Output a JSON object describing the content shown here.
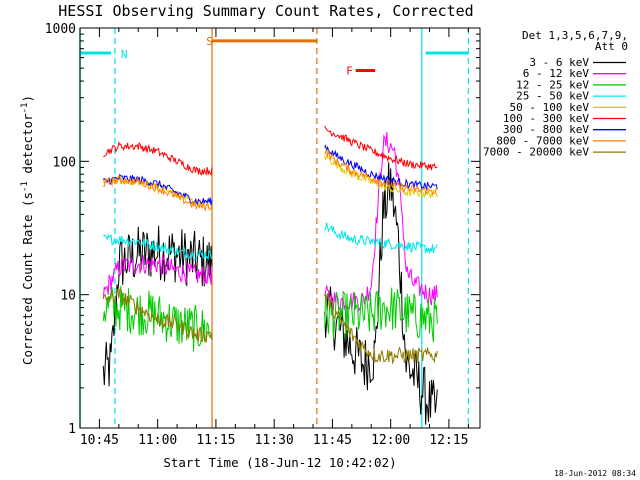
{
  "chart_data": {
    "type": "line",
    "title": "HESSI Observing Summary Count Rates, Corrected",
    "xlabel": "Start Time (18-Jun-12 10:42:02)",
    "ylabel_main": "Corrected Count Rate (s",
    "ylabel_sup1": "-1",
    "ylabel_mid": " detector",
    "ylabel_sup2": "-1",
    "ylabel_end": ")",
    "ylog": true,
    "ylim": [
      1,
      1000
    ],
    "xlim": [
      "10:40",
      "12:23"
    ],
    "x_ticks": [
      "10:45",
      "11:00",
      "11:15",
      "11:30",
      "11:45",
      "12:00",
      "12:15"
    ],
    "y_ticks": [
      "1",
      "10",
      "100",
      "1000"
    ],
    "legend_header": [
      "Det 1,3,5,6,7,9,",
      "Att 0"
    ],
    "legend_position": "right",
    "timestamp": "18-Jun-2012 08:34",
    "flag_labels": {
      "night": "N",
      "saa": "S",
      "flare": "F"
    },
    "series": [
      {
        "name": "3 - 6 keV",
        "color": "#000000",
        "noise": 0.22,
        "points": {
          "p1": [
            [
              "10:46",
              2.5
            ],
            [
              "10:48",
              3
            ],
            [
              "10:50",
              17
            ],
            [
              "10:55",
              20
            ],
            [
              "11:00",
              21
            ],
            [
              "11:05",
              20
            ],
            [
              "11:10",
              18
            ],
            [
              "11:14",
              17
            ]
          ],
          "p2": [
            [
              "11:43",
              8
            ],
            [
              "11:46",
              6
            ],
            [
              "11:50",
              4
            ],
            [
              "11:53",
              3
            ],
            [
              "11:56",
              3.5
            ],
            [
              "11:58",
              40
            ],
            [
              "12:00",
              70
            ],
            [
              "12:02",
              25
            ],
            [
              "12:04",
              3
            ],
            [
              "12:06",
              2.5
            ],
            [
              "12:10",
              1.5
            ],
            [
              "12:12",
              1.3
            ]
          ]
        }
      },
      {
        "name": "6 - 12 keV",
        "color": "#ff00ff",
        "noise": 0.08,
        "points": {
          "p1": [
            [
              "10:46",
              10
            ],
            [
              "10:50",
              16
            ],
            [
              "10:55",
              17
            ],
            [
              "11:00",
              17
            ],
            [
              "11:05",
              15
            ],
            [
              "11:10",
              14
            ],
            [
              "11:14",
              14
            ]
          ],
          "p2": [
            [
              "11:43",
              10
            ],
            [
              "11:46",
              9
            ],
            [
              "11:50",
              9
            ],
            [
              "11:53",
              9
            ],
            [
              "11:55",
              12
            ],
            [
              "11:57",
              60
            ],
            [
              "11:58",
              130
            ],
            [
              "11:59",
              140
            ],
            [
              "12:01",
              120
            ],
            [
              "12:03",
              40
            ],
            [
              "12:04",
              15
            ],
            [
              "12:06",
              12
            ],
            [
              "12:10",
              10
            ],
            [
              "12:12",
              10
            ]
          ]
        }
      },
      {
        "name": "12 - 25 keV",
        "color": "#00cc00",
        "noise": 0.18,
        "points": {
          "p1": [
            [
              "10:46",
              8
            ],
            [
              "10:50",
              8
            ],
            [
              "10:55",
              7.5
            ],
            [
              "11:00",
              7
            ],
            [
              "11:05",
              6
            ],
            [
              "11:10",
              5.5
            ],
            [
              "11:14",
              5.5
            ]
          ],
          "p2": [
            [
              "11:43",
              7
            ],
            [
              "11:46",
              7
            ],
            [
              "11:50",
              7
            ],
            [
              "11:55",
              7
            ],
            [
              "11:58",
              8
            ],
            [
              "12:00",
              8
            ],
            [
              "12:05",
              7
            ],
            [
              "12:10",
              6.5
            ],
            [
              "12:12",
              6.5
            ]
          ]
        }
      },
      {
        "name": "25 - 50 keV",
        "color": "#00e6e6",
        "noise": 0.04,
        "points": {
          "p1": [
            [
              "10:46",
              26
            ],
            [
              "10:50",
              26
            ],
            [
              "10:55",
              25
            ],
            [
              "11:00",
              23
            ],
            [
              "11:05",
              21
            ],
            [
              "11:10",
              20
            ],
            [
              "11:14",
              20
            ]
          ],
          "p2": [
            [
              "11:43",
              33
            ],
            [
              "11:46",
              29
            ],
            [
              "11:50",
              26
            ],
            [
              "11:55",
              25
            ],
            [
              "12:00",
              24
            ],
            [
              "12:05",
              23
            ],
            [
              "12:10",
              22
            ],
            [
              "12:12",
              22
            ]
          ]
        }
      },
      {
        "name": "50 - 100 keV",
        "color": "#e6c800",
        "noise": 0.03,
        "points": {
          "p1": [
            [
              "10:46",
              70
            ],
            [
              "10:50",
              72
            ],
            [
              "10:55",
              70
            ],
            [
              "11:00",
              65
            ],
            [
              "11:05",
              56
            ],
            [
              "11:10",
              49
            ],
            [
              "11:14",
              48
            ]
          ],
          "p2": [
            [
              "11:43",
              110
            ],
            [
              "11:46",
              95
            ],
            [
              "11:50",
              80
            ],
            [
              "11:55",
              70
            ],
            [
              "12:00",
              62
            ],
            [
              "12:05",
              58
            ],
            [
              "12:10",
              57
            ],
            [
              "12:12",
              57
            ]
          ]
        }
      },
      {
        "name": "100 - 300 keV",
        "color": "#ff0000",
        "noise": 0.03,
        "points": {
          "p1": [
            [
              "10:46",
              115
            ],
            [
              "10:50",
              130
            ],
            [
              "10:55",
              130
            ],
            [
              "11:00",
              118
            ],
            [
              "11:05",
              100
            ],
            [
              "11:10",
              85
            ],
            [
              "11:14",
              85
            ]
          ],
          "p2": [
            [
              "11:43",
              175
            ],
            [
              "11:46",
              160
            ],
            [
              "11:50",
              140
            ],
            [
              "11:55",
              120
            ],
            [
              "12:00",
              105
            ],
            [
              "12:05",
              95
            ],
            [
              "12:10",
              92
            ],
            [
              "12:12",
              90
            ]
          ]
        }
      },
      {
        "name": "300 - 800 keV",
        "color": "#0000ff",
        "noise": 0.03,
        "points": {
          "p1": [
            [
              "10:46",
              70
            ],
            [
              "10:50",
              75
            ],
            [
              "10:55",
              73
            ],
            [
              "11:00",
              68
            ],
            [
              "11:05",
              58
            ],
            [
              "11:10",
              50
            ],
            [
              "11:14",
              50
            ]
          ],
          "p2": [
            [
              "11:43",
              130
            ],
            [
              "11:46",
              110
            ],
            [
              "11:50",
              95
            ],
            [
              "11:55",
              80
            ],
            [
              "12:00",
              72
            ],
            [
              "12:05",
              67
            ],
            [
              "12:10",
              65
            ],
            [
              "12:12",
              65
            ]
          ]
        }
      },
      {
        "name": "800 - 7000 keV",
        "color": "#ff8000",
        "noise": 0.03,
        "points": {
          "p1": [
            [
              "10:46",
              68
            ],
            [
              "10:50",
              73
            ],
            [
              "10:55",
              70
            ],
            [
              "11:00",
              63
            ],
            [
              "11:05",
              54
            ],
            [
              "11:10",
              46
            ],
            [
              "11:14",
              46
            ]
          ],
          "p2": [
            [
              "11:43",
              120
            ],
            [
              "11:46",
              100
            ],
            [
              "11:50",
              85
            ],
            [
              "11:55",
              75
            ],
            [
              "12:00",
              67
            ],
            [
              "12:05",
              62
            ],
            [
              "12:10",
              60
            ],
            [
              "12:12",
              60
            ]
          ]
        }
      },
      {
        "name": "7000 - 20000 keV",
        "color": "#8b7a00",
        "noise": 0.06,
        "points": {
          "p1": [
            [
              "10:46",
              9
            ],
            [
              "10:50",
              10
            ],
            [
              "10:55",
              8
            ],
            [
              "11:00",
              6.5
            ],
            [
              "11:05",
              6
            ],
            [
              "11:10",
              5
            ],
            [
              "11:14",
              5
            ]
          ],
          "p2": [
            [
              "11:43",
              10
            ],
            [
              "11:46",
              7
            ],
            [
              "11:50",
              5
            ],
            [
              "11:53",
              4
            ],
            [
              "11:56",
              3.5
            ],
            [
              "12:00",
              3.5
            ],
            [
              "12:05",
              3.5
            ],
            [
              "12:10",
              3.5
            ],
            [
              "12:12",
              3.5
            ]
          ]
        }
      }
    ],
    "flags": {
      "night_color": "#00e6e6",
      "saa_color": "#e07000",
      "flare_color": "#ff0000",
      "night_bars": [
        [
          "10:40",
          "10:48"
        ],
        [
          "12:09",
          "12:20"
        ]
      ],
      "night_boundaries": [
        "10:49",
        "12:08",
        "12:20"
      ],
      "saa_bar": [
        "11:14",
        "11:41"
      ],
      "saa_boundaries": [
        "11:14",
        "11:41"
      ],
      "flare_bar": [
        "11:51",
        "11:56"
      ],
      "night_edge_left": "10:40"
    }
  }
}
